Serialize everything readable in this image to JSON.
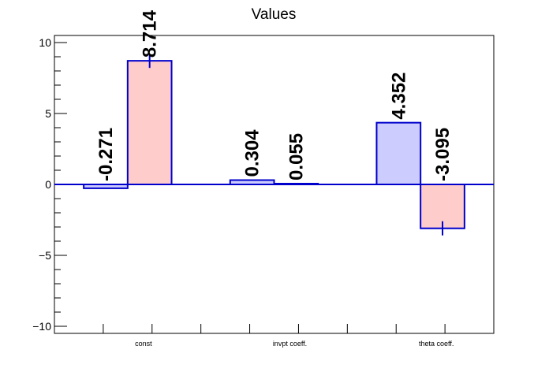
{
  "chart_data": {
    "type": "bar",
    "title": "Values",
    "categories": [
      "const",
      "invpt coeff.",
      "theta coeff."
    ],
    "ylim": [
      -10.5,
      10.5
    ],
    "yticks": [
      -10,
      -5,
      0,
      5,
      10
    ],
    "ytick_labels": [
      "−10",
      "−5",
      "0",
      "5",
      "10"
    ],
    "grid": false,
    "series": [
      {
        "fill": "#ccccff",
        "stroke": "#0000cc",
        "values": [
          -0.271,
          0.304,
          4.352
        ],
        "labels": [
          "-0.271",
          "0.304",
          "4.352"
        ],
        "errors": [
          0.0,
          0.0,
          0.0
        ]
      },
      {
        "fill": "#ffcccc",
        "stroke": "#0000cc",
        "values": [
          8.714,
          0.055,
          -3.095
        ],
        "labels": [
          "8.714",
          "0.055",
          "-3.095"
        ],
        "errors": [
          0.5,
          0.0,
          0.5
        ]
      }
    ],
    "zero_line_color": "#0000cc"
  }
}
